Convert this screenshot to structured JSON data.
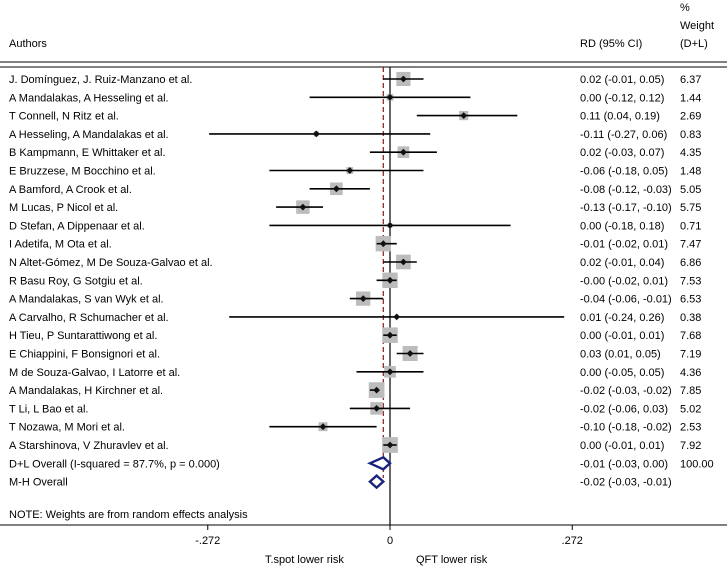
{
  "chart_data": {
    "type": "forest",
    "headers": {
      "authors": "Authors",
      "rd": "RD (95% CI)",
      "weight_line1": "%",
      "weight_line2": "Weight",
      "weight_line3": "(D+L)"
    },
    "xlim": [
      -0.272,
      0.272
    ],
    "ticks": [
      {
        "value": -0.272,
        "label": "-.272"
      },
      {
        "value": 0,
        "label": "0"
      },
      {
        "value": 0.272,
        "label": ".272"
      }
    ],
    "overall_line_value": -0.01,
    "xlabel_left": "T.spot lower risk",
    "xlabel_right": "QFT lower risk",
    "studies": [
      {
        "label": "J. Domínguez, J. Ruiz-Manzano et al.",
        "est": 0.02,
        "lo": -0.01,
        "hi": 0.05,
        "ci_text": "0.02 (-0.01, 0.05)",
        "weight": 6.37,
        "weight_text": "6.37"
      },
      {
        "label": "A Mandalakas, A Hesseling et al.",
        "est": 0.0,
        "lo": -0.12,
        "hi": 0.12,
        "ci_text": "0.00 (-0.12, 0.12)",
        "weight": 1.44,
        "weight_text": "1.44"
      },
      {
        "label": "T Connell, N Ritz et al.",
        "est": 0.11,
        "lo": 0.04,
        "hi": 0.19,
        "ci_text": "0.11 (0.04, 0.19)",
        "weight": 2.69,
        "weight_text": "2.69"
      },
      {
        "label": "A Hesseling, A Mandalakas et al.",
        "est": -0.11,
        "lo": -0.27,
        "hi": 0.06,
        "ci_text": "-0.11 (-0.27, 0.06)",
        "weight": 0.83,
        "weight_text": "0.83"
      },
      {
        "label": "B Kampmann, E Whittaker et al.",
        "est": 0.02,
        "lo": -0.03,
        "hi": 0.07,
        "ci_text": "0.02 (-0.03, 0.07)",
        "weight": 4.35,
        "weight_text": "4.35"
      },
      {
        "label": "E Bruzzese, M Bocchino et al.",
        "est": -0.06,
        "lo": -0.18,
        "hi": 0.05,
        "ci_text": "-0.06 (-0.18, 0.05)",
        "weight": 1.48,
        "weight_text": "1.48"
      },
      {
        "label": "A Bamford, A Crook et al.",
        "est": -0.08,
        "lo": -0.12,
        "hi": -0.03,
        "ci_text": "-0.08 (-0.12, -0.03)",
        "weight": 5.05,
        "weight_text": "5.05"
      },
      {
        "label": "M Lucas, P Nicol et al.",
        "est": -0.13,
        "lo": -0.17,
        "hi": -0.1,
        "ci_text": "-0.13 (-0.17, -0.10)",
        "weight": 5.75,
        "weight_text": "5.75"
      },
      {
        "label": "D Stefan, A Dippenaar et al.",
        "est": 0.0,
        "lo": -0.18,
        "hi": 0.18,
        "ci_text": "0.00 (-0.18, 0.18)",
        "weight": 0.71,
        "weight_text": "0.71"
      },
      {
        "label": "I Adetifa, M Ota et al.",
        "est": -0.01,
        "lo": -0.02,
        "hi": 0.01,
        "ci_text": "-0.01 (-0.02, 0.01)",
        "weight": 7.47,
        "weight_text": "7.47"
      },
      {
        "label": "N Altet-Gómez, M De Souza-Galvao et al.",
        "est": 0.02,
        "lo": -0.01,
        "hi": 0.04,
        "ci_text": "0.02 (-0.01, 0.04)",
        "weight": 6.86,
        "weight_text": "6.86"
      },
      {
        "label": "R Basu Roy, G Sotgiu et al.",
        "est": -0.0,
        "lo": -0.02,
        "hi": 0.01,
        "ci_text": "-0.00 (-0.02, 0.01)",
        "weight": 7.53,
        "weight_text": "7.53"
      },
      {
        "label": "A Mandalakas, S van Wyk et al.",
        "est": -0.04,
        "lo": -0.06,
        "hi": -0.01,
        "ci_text": "-0.04 (-0.06, -0.01)",
        "weight": 6.53,
        "weight_text": "6.53"
      },
      {
        "label": "A Carvalho, R Schumacher et al.",
        "est": 0.01,
        "lo": -0.24,
        "hi": 0.26,
        "ci_text": "0.01 (-0.24, 0.26)",
        "weight": 0.38,
        "weight_text": "0.38"
      },
      {
        "label": "H Tieu, P Suntarattiwong et al.",
        "est": 0.0,
        "lo": -0.01,
        "hi": 0.01,
        "ci_text": "0.00 (-0.01, 0.01)",
        "weight": 7.68,
        "weight_text": "7.68"
      },
      {
        "label": "E Chiappini, F Bonsignori et al.",
        "est": 0.03,
        "lo": 0.01,
        "hi": 0.05,
        "ci_text": "0.03 (0.01, 0.05)",
        "weight": 7.19,
        "weight_text": "7.19"
      },
      {
        "label": "M de Souza-Galvao, I Latorre et al.",
        "est": 0.0,
        "lo": -0.05,
        "hi": 0.05,
        "ci_text": "0.00 (-0.05, 0.05)",
        "weight": 4.36,
        "weight_text": "4.36"
      },
      {
        "label": "A Mandalakas, H Kirchner et al.",
        "est": -0.02,
        "lo": -0.03,
        "hi": -0.02,
        "ci_text": "-0.02 (-0.03, -0.02)",
        "weight": 7.85,
        "weight_text": "7.85"
      },
      {
        "label": "T Li, L Bao et al.",
        "est": -0.02,
        "lo": -0.06,
        "hi": 0.03,
        "ci_text": "-0.02 (-0.06, 0.03)",
        "weight": 5.02,
        "weight_text": "5.02"
      },
      {
        "label": "T Nozawa, M Mori et al.",
        "est": -0.1,
        "lo": -0.18,
        "hi": -0.02,
        "ci_text": "-0.10 (-0.18, -0.02)",
        "weight": 2.53,
        "weight_text": "2.53"
      },
      {
        "label": "A Starshinova, V Zhuravlev et al.",
        "est": 0.0,
        "lo": -0.01,
        "hi": 0.01,
        "ci_text": "0.00 (-0.01, 0.01)",
        "weight": 7.92,
        "weight_text": "7.92"
      }
    ],
    "overall": [
      {
        "label": "D+L Overall  (I-squared = 87.7%, p = 0.000)",
        "est": -0.01,
        "lo": -0.03,
        "hi": 0.0,
        "ci_text": "-0.01 (-0.03, 0.00)",
        "weight_text": "100.00"
      },
      {
        "label": "M-H Overall",
        "est": -0.02,
        "lo": -0.03,
        "hi": -0.01,
        "ci_text": "-0.02 (-0.03, -0.01)",
        "weight_text": ""
      }
    ],
    "note": "NOTE: Weights are from random effects analysis",
    "colors": {
      "box": "#bcbcbc",
      "point": "#111111",
      "ci": "#000000",
      "diamond": "#1a237e",
      "overall_line": "#8b1a1a",
      "axis": "#000000"
    }
  }
}
